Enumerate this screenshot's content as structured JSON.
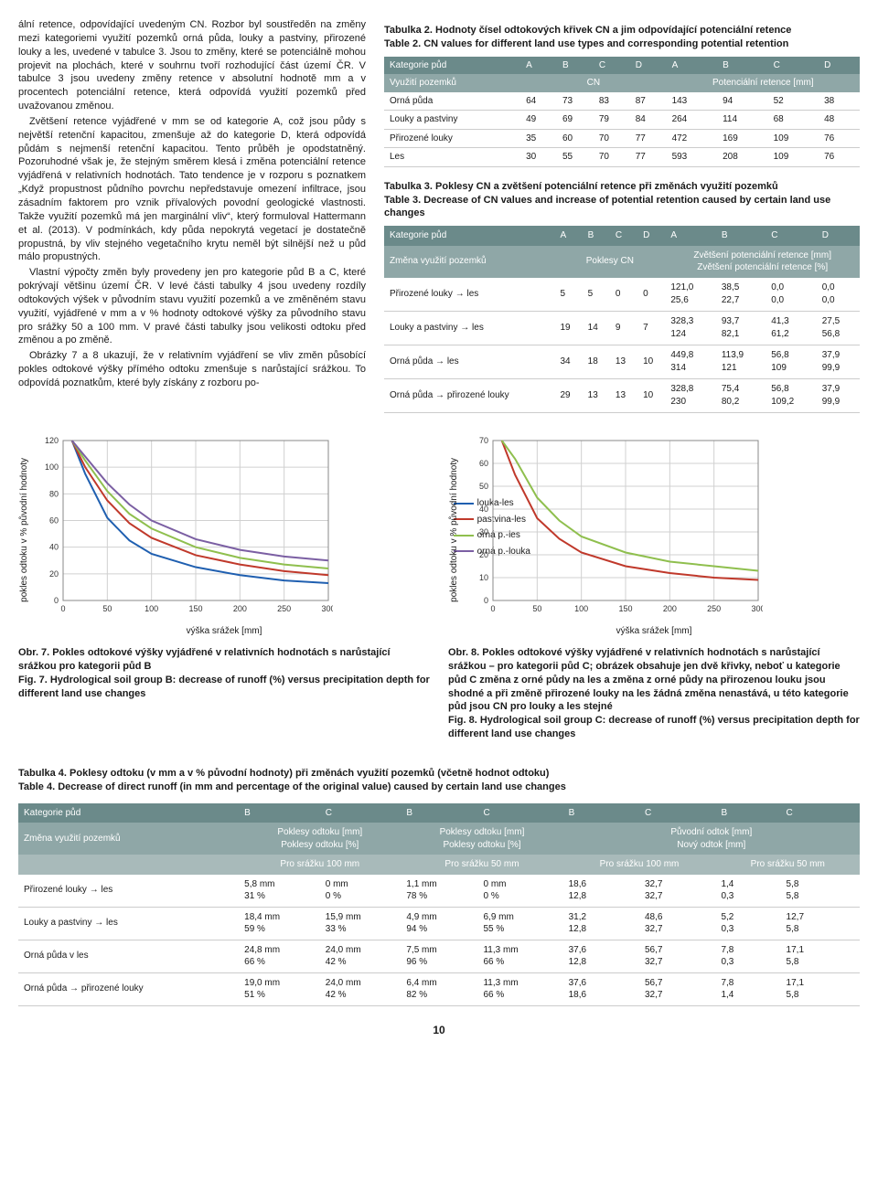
{
  "body_text": {
    "p1": "ální retence, odpovídající uvedeným CN. Rozbor byl soustředěn na změny mezi kategoriemi využití pozemků orná půda, louky a pastviny, přirozené louky a les, uvedené v tabulce 3. Jsou to změny, které se potenciálně mohou projevit na plochách, které v souhrnu tvoří rozhodující část území ČR. V tabulce 3 jsou uvedeny změny retence v absolutní hodnotě mm a v procentech potenciální retence, která odpovídá využití pozemků před uvažovanou změnou.",
    "p2": "Zvětšení retence vyjádřené v mm se od kategorie A, což jsou půdy s největší retenční kapacitou, zmenšuje až do kategorie D, která odpovídá půdám s nejmenší retenční kapacitou. Tento průběh je opodstatněný. Pozoruhodné však je, že stejným směrem klesá i změna potenciální retence vyjádřená v relativních hodnotách. Tato tendence je v rozporu s poznatkem „Když propustnost půdního povrchu nepředstavuje omezení infiltrace, jsou zásadním faktorem pro vznik přívalových povodní geologické vlastnosti. Takže využití pozemků má jen marginální vliv“, který formuloval Hattermann et al. (2013). V podmínkách, kdy půda nepokrytá vegetací je dostatečně propustná, by vliv stejného vegetačního krytu neměl být silnější než u půd málo propustných.",
    "p3": "Vlastní výpočty změn byly provedeny jen pro kategorie půd B a C, které pokrývají většinu území ČR. V levé části tabulky 4 jsou uvedeny rozdíly odtokových výšek v původním stavu využití pozemků a ve změněném stavu využití, vyjádřené v mm a v % hodnoty odtokové výšky za původního stavu pro srážky 50 a 100 mm. V pravé části tabulky jsou velikosti odtoku před změnou a po změně.",
    "p4": "Obrázky 7 a 8 ukazují, že v relativním vyjádření se vliv změn působící pokles odtokové výšky přímého odtoku zmenšuje s narůstající srážkou. To odpovídá poznatkům, které byly získány z rozboru po-"
  },
  "table2": {
    "caption_cz": "Tabulka 2. Hodnoty čísel odtokových křivek CN a jim odpovídající potenciální retence",
    "caption_en": "Table 2. CN values for different land use types and corresponding potential retention",
    "hdr1": [
      "Kategorie půd",
      "A",
      "B",
      "C",
      "D",
      "A",
      "B",
      "C",
      "D"
    ],
    "hdr2": [
      "Využití pozemků",
      "CN",
      "Potenciální retence [mm]"
    ],
    "rows": [
      [
        "Orná půda",
        "64",
        "73",
        "83",
        "87",
        "143",
        "94",
        "52",
        "38"
      ],
      [
        "Louky a pastviny",
        "49",
        "69",
        "79",
        "84",
        "264",
        "114",
        "68",
        "48"
      ],
      [
        "Přirozené louky",
        "35",
        "60",
        "70",
        "77",
        "472",
        "169",
        "109",
        "76"
      ],
      [
        "Les",
        "30",
        "55",
        "70",
        "77",
        "593",
        "208",
        "109",
        "76"
      ]
    ]
  },
  "table3": {
    "caption_cz": "Tabulka 3. Poklesy CN a zvětšení potenciální retence při změnách využití pozemků",
    "caption_en": "Table 3. Decrease of CN values and increase of potential retention caused by certain land use changes",
    "hdr1": [
      "Kategorie půd",
      "A",
      "B",
      "C",
      "D",
      "A",
      "B",
      "C",
      "D"
    ],
    "hdr2_left": "Změna využití pozemků",
    "hdr2_mid": "Poklesy CN",
    "hdr2_right_a": "Zvětšení potenciální retence [mm]",
    "hdr2_right_b": "Zvětšení potenciální retence [%]",
    "rows": [
      {
        "label": "Přirozené louky → les",
        "cn": [
          "5",
          "5",
          "0",
          "0"
        ],
        "top": [
          "121,0",
          "38,5",
          "0,0",
          "0,0"
        ],
        "bot": [
          "25,6",
          "22,7",
          "0,0",
          "0,0"
        ]
      },
      {
        "label": "Louky a pastviny → les",
        "cn": [
          "19",
          "14",
          "9",
          "7"
        ],
        "top": [
          "328,3",
          "93,7",
          "41,3",
          "27,5"
        ],
        "bot": [
          "124",
          "82,1",
          "61,2",
          "56,8"
        ]
      },
      {
        "label": "Orná půda → les",
        "cn": [
          "34",
          "18",
          "13",
          "10"
        ],
        "top": [
          "449,8",
          "113,9",
          "56,8",
          "37,9"
        ],
        "bot": [
          "314",
          "121",
          "109",
          "99,9"
        ]
      },
      {
        "label": "Orná půda → přirozené louky",
        "cn": [
          "29",
          "13",
          "13",
          "10"
        ],
        "top": [
          "328,8",
          "75,4",
          "56,8",
          "37,9"
        ],
        "bot": [
          "230",
          "80,2",
          "109,2",
          "99,9"
        ]
      }
    ]
  },
  "chart7": {
    "type": "line",
    "ylabel": "pokles odtoku v % původní hodnoty",
    "xlabel": "výška srážek [mm]",
    "xlim": [
      0,
      300
    ],
    "ylim": [
      0,
      120
    ],
    "xticks": [
      0,
      50,
      100,
      150,
      200,
      250,
      300
    ],
    "yticks": [
      0,
      20,
      40,
      60,
      80,
      100,
      120
    ],
    "grid_color": "#d0d0d0",
    "bg": "#ffffff",
    "line_width": 2,
    "series": [
      {
        "name": "louka-les",
        "color": "#1f5fb0",
        "points": [
          [
            10,
            120
          ],
          [
            25,
            95
          ],
          [
            50,
            62
          ],
          [
            75,
            45
          ],
          [
            100,
            35
          ],
          [
            150,
            25
          ],
          [
            200,
            19
          ],
          [
            250,
            15
          ],
          [
            300,
            13
          ]
        ]
      },
      {
        "name": "pastvina-les",
        "color": "#c0392b",
        "points": [
          [
            10,
            120
          ],
          [
            25,
            100
          ],
          [
            50,
            75
          ],
          [
            75,
            58
          ],
          [
            100,
            47
          ],
          [
            150,
            34
          ],
          [
            200,
            27
          ],
          [
            250,
            22
          ],
          [
            300,
            19
          ]
        ]
      },
      {
        "name": "orná p.-les",
        "color": "#8fbf4e",
        "points": [
          [
            10,
            120
          ],
          [
            25,
            105
          ],
          [
            50,
            82
          ],
          [
            75,
            65
          ],
          [
            100,
            54
          ],
          [
            150,
            40
          ],
          [
            200,
            32
          ],
          [
            250,
            27
          ],
          [
            300,
            24
          ]
        ]
      },
      {
        "name": "orná p.-louka",
        "color": "#7b5fa3",
        "points": [
          [
            10,
            120
          ],
          [
            25,
            108
          ],
          [
            50,
            88
          ],
          [
            75,
            72
          ],
          [
            100,
            60
          ],
          [
            150,
            46
          ],
          [
            200,
            38
          ],
          [
            250,
            33
          ],
          [
            300,
            30
          ]
        ]
      }
    ],
    "caption_cz": "Obr. 7. Pokles odtokové výšky vyjádřené v relativních hodnotách s narůstající srážkou pro kategorii půd B",
    "caption_en": "Fig. 7. Hydrological soil group B: decrease of runoff (%) versus precipitation depth for different land use changes"
  },
  "chart8": {
    "type": "line",
    "ylabel": "pokles odtoku v % původní hodnoty",
    "xlabel": "výška srážek [mm]",
    "xlim": [
      0,
      300
    ],
    "ylim": [
      0,
      70
    ],
    "xticks": [
      0,
      50,
      100,
      150,
      200,
      250,
      300
    ],
    "yticks": [
      0,
      10,
      20,
      30,
      40,
      50,
      60,
      70
    ],
    "grid_color": "#d0d0d0",
    "bg": "#ffffff",
    "line_width": 2,
    "series": [
      {
        "name": "pastvina-les",
        "color": "#c0392b",
        "points": [
          [
            10,
            70
          ],
          [
            25,
            55
          ],
          [
            50,
            36
          ],
          [
            75,
            27
          ],
          [
            100,
            21
          ],
          [
            150,
            15
          ],
          [
            200,
            12
          ],
          [
            250,
            10
          ],
          [
            300,
            9
          ]
        ]
      },
      {
        "name": "orná p.-les",
        "color": "#8fbf4e",
        "points": [
          [
            10,
            70
          ],
          [
            25,
            62
          ],
          [
            50,
            45
          ],
          [
            75,
            35
          ],
          [
            100,
            28
          ],
          [
            150,
            21
          ],
          [
            200,
            17
          ],
          [
            250,
            15
          ],
          [
            300,
            13
          ]
        ]
      }
    ],
    "caption_cz": "Obr. 8. Pokles odtokové výšky vyjádřené v relativních hodnotách s narůstající srážkou – pro kategorii půd C; obrázek obsahuje jen dvě křivky, neboť u kategorie půd C změna z orné půdy na les a změna z orné půdy na přirozenou louku jsou shodné a při změně přirozené louky na les žádná změna nenastává, u této kategorie půd jsou CN pro louky a les stejné",
    "caption_en": "Fig. 8. Hydrological soil group C: decrease of runoff (%) versus precipitation depth for different land use changes"
  },
  "table4": {
    "caption_cz": "Tabulka 4. Poklesy odtoku (v mm a v % původní hodnoty) při změnách využití pozemků (včetně hodnot odtoku)",
    "caption_en": "Table 4. Decrease of direct runoff (in mm and percentage of the original value) caused by certain land use changes",
    "hdr1": [
      "Kategorie půd",
      "B",
      "C",
      "B",
      "C",
      "B",
      "C",
      "B",
      "C"
    ],
    "hdr2": [
      "Změna využití pozemků",
      "Poklesy odtoku [mm]\nPoklesy odtoku [%]",
      "Poklesy odtoku [mm]\nPoklesy odtoku [%]",
      "Původní odtok [mm]\nNový odtok [mm]"
    ],
    "hdr3": [
      "Pro srážku 100 mm",
      "Pro srážku 50 mm",
      "Pro srážku 100 mm",
      "Pro srážku 50 mm"
    ],
    "rows": [
      {
        "label": "Přirozené louky → les",
        "d": [
          "5,8 mm",
          "0 mm",
          "1,1 mm",
          "0 mm",
          "18,6",
          "32,7",
          "1,4",
          "5,8"
        ],
        "d2": [
          "31 %",
          "0 %",
          "78 %",
          "0 %",
          "12,8",
          "32,7",
          "0,3",
          "5,8"
        ]
      },
      {
        "label": "Louky a pastviny → les",
        "d": [
          "18,4 mm",
          "15,9 mm",
          "4,9 mm",
          "6,9 mm",
          "31,2",
          "48,6",
          "5,2",
          "12,7"
        ],
        "d2": [
          "59 %",
          "33 %",
          "94 %",
          "55 %",
          "12,8",
          "32,7",
          "0,3",
          "5,8"
        ]
      },
      {
        "label": "Orná půda v les",
        "d": [
          "24,8 mm",
          "24,0 mm",
          "7,5 mm",
          "11,3 mm",
          "37,6",
          "56,7",
          "7,8",
          "17,1"
        ],
        "d2": [
          "66 %",
          "42 %",
          "96 %",
          "66 %",
          "12,8",
          "32,7",
          "0,3",
          "5,8"
        ]
      },
      {
        "label": "Orná půda → přirozené louky",
        "d": [
          "19,0 mm",
          "24,0 mm",
          "6,4 mm",
          "11,3 mm",
          "37,6",
          "56,7",
          "7,8",
          "17,1"
        ],
        "d2": [
          "51 %",
          "42 %",
          "82 %",
          "66 %",
          "18,6",
          "32,7",
          "1,4",
          "5,8"
        ]
      }
    ]
  },
  "page_number": "10"
}
